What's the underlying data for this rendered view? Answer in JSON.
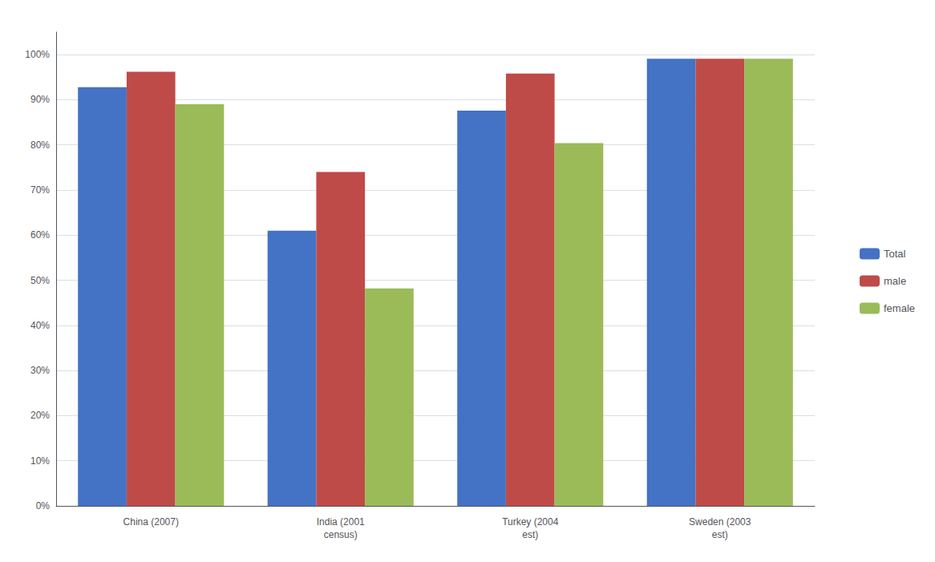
{
  "chart_data": {
    "type": "bar",
    "categories": [
      "China (2007)",
      "India (2001\ncensus)",
      "Turkey (2004\nest)",
      "Sweden (2003\nest)"
    ],
    "series": [
      {
        "name": "Total",
        "color": "#4472C4",
        "values": [
          0.928,
          0.61,
          0.876,
          0.991
        ]
      },
      {
        "name": "male",
        "color": "#BE4B48",
        "values": [
          0.962,
          0.74,
          0.958,
          0.991
        ]
      },
      {
        "name": "female",
        "color": "#9BBB59",
        "values": [
          0.89,
          0.482,
          0.804,
          0.991
        ]
      }
    ],
    "ylim": [
      0,
      1.05
    ],
    "yticks": [
      {
        "value": 0.0,
        "label": "0%"
      },
      {
        "value": 0.1,
        "label": "10%"
      },
      {
        "value": 0.2,
        "label": "20%"
      },
      {
        "value": 0.3,
        "label": "30%"
      },
      {
        "value": 0.4,
        "label": "40%"
      },
      {
        "value": 0.5,
        "label": "50%"
      },
      {
        "value": 0.6,
        "label": "60%"
      },
      {
        "value": 0.7,
        "label": "70%"
      },
      {
        "value": 0.8,
        "label": "80%"
      },
      {
        "value": 0.9,
        "label": "90%"
      },
      {
        "value": 1.0,
        "label": "100%"
      }
    ],
    "grid": true,
    "legend": "right"
  }
}
